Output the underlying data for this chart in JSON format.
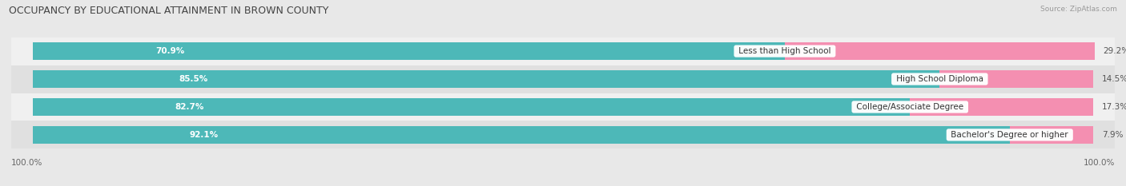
{
  "title": "OCCUPANCY BY EDUCATIONAL ATTAINMENT IN BROWN COUNTY",
  "source": "Source: ZipAtlas.com",
  "categories": [
    "Less than High School",
    "High School Diploma",
    "College/Associate Degree",
    "Bachelor's Degree or higher"
  ],
  "owner_pct": [
    70.9,
    85.5,
    82.7,
    92.1
  ],
  "renter_pct": [
    29.2,
    14.5,
    17.3,
    7.9
  ],
  "owner_color": "#4db8b8",
  "renter_color": "#f48fb1",
  "bg_color": "#e8e8e8",
  "row_colors": [
    "#f0f0f0",
    "#e0e0e0"
  ],
  "title_fontsize": 9,
  "label_fontsize": 7.5,
  "pct_label_fontsize": 7.5,
  "axis_label_fontsize": 7.5,
  "legend_fontsize": 8,
  "bar_height": 0.62,
  "x_left_label": "100.0%",
  "x_right_label": "100.0%",
  "owner_label_color": "white",
  "renter_label_color": "#555555",
  "cat_label_color": "#333333"
}
